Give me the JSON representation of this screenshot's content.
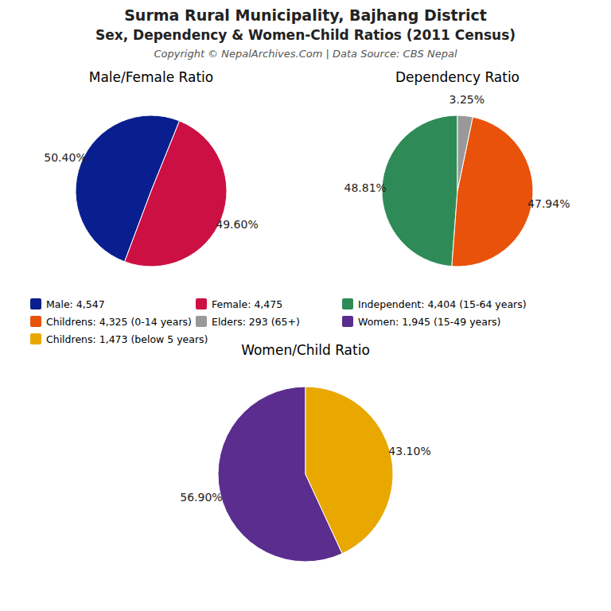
{
  "title": "Surma Rural Municipality, Bajhang District",
  "subtitle": "Sex, Dependency & Women-Child Ratios (2011 Census)",
  "annotations": [
    "Copyright © NepalArchives.Com | Data Source: CBS Nepal"
  ],
  "chart_data": [
    {
      "type": "pie",
      "title": "Male/Female Ratio",
      "categories": [
        "Male: 4,547",
        "Female: 4,475"
      ],
      "values": [
        50.4,
        49.6
      ],
      "value_labels": [
        "50.40%",
        "49.60%"
      ],
      "colors": [
        "#0a1f8f",
        "#cc1044"
      ],
      "data_labels": true,
      "legend": "bottom"
    },
    {
      "type": "pie",
      "title": "Dependency Ratio",
      "categories": [
        "Independent: 4,404 (15-64 years)",
        "Childrens: 4,325 (0-14 years)",
        "Elders: 293 (65+)"
      ],
      "values": [
        48.81,
        47.94,
        3.25
      ],
      "value_labels": [
        "48.81%",
        "47.94%",
        "3.25%"
      ],
      "colors": [
        "#2e8b57",
        "#e8520a",
        "#999999"
      ],
      "data_labels": true,
      "legend": "bottom"
    },
    {
      "type": "pie",
      "title": "Women/Child Ratio",
      "categories": [
        "Women: 1,945 (15-49 years)",
        "Childrens: 1,473 (below 5 years)"
      ],
      "values": [
        56.9,
        43.1
      ],
      "value_labels": [
        "56.90%",
        "43.10%"
      ],
      "colors": [
        "#5b2d8e",
        "#e8a800"
      ],
      "data_labels": true,
      "legend": "top"
    }
  ]
}
